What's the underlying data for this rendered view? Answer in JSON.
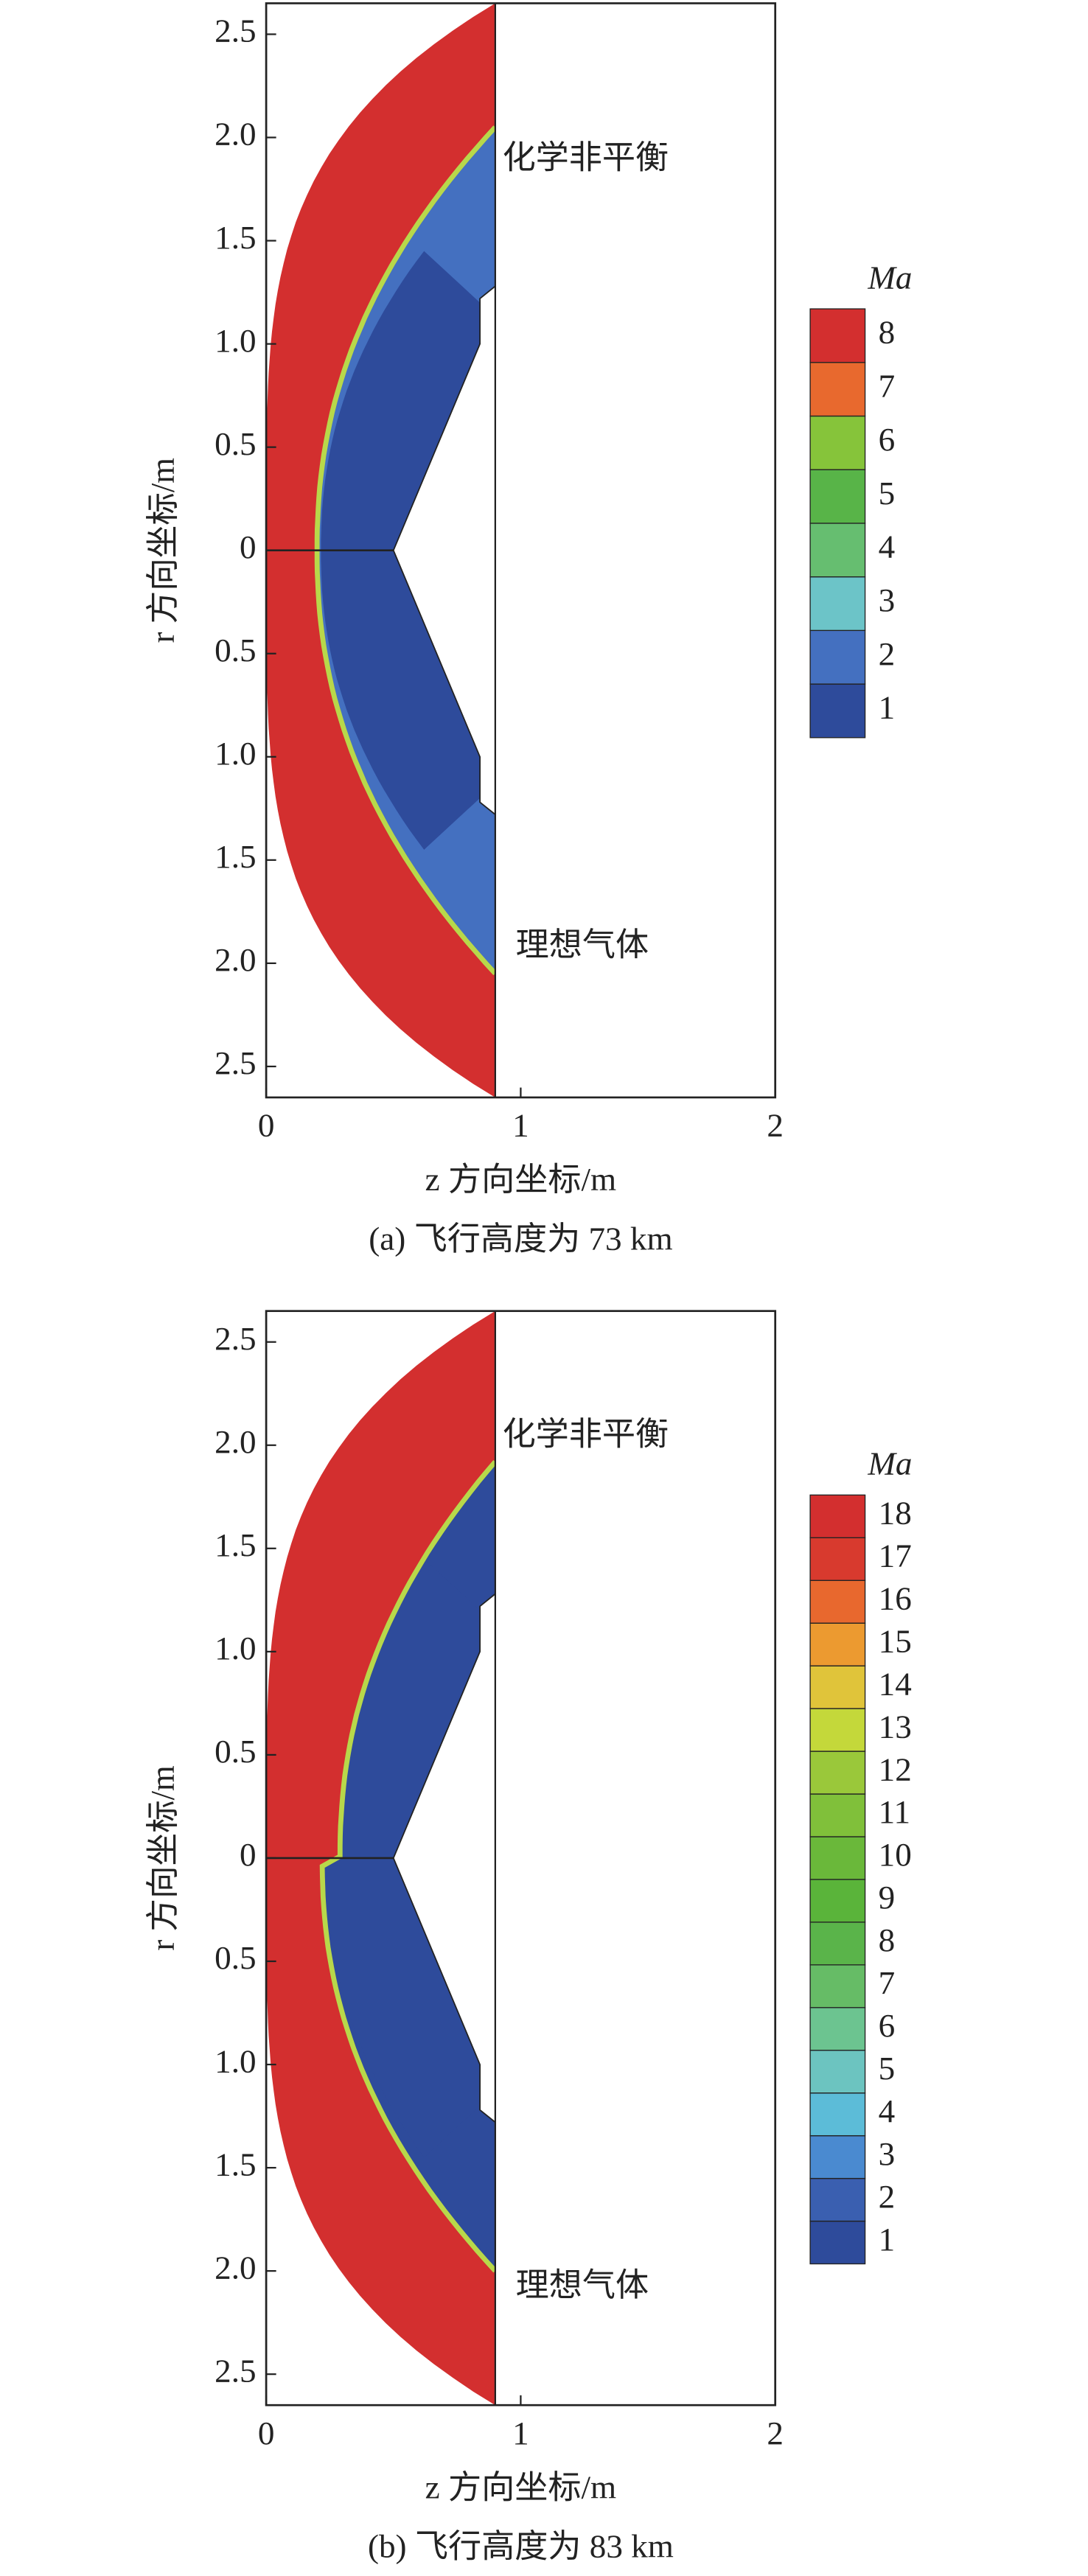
{
  "chart_data": [
    {
      "type": "contour",
      "title": "(a) 飞行高度为 73 km",
      "xlabel": "z 方向坐标/m",
      "ylabel": "r 方向坐标/m",
      "xlim": [
        0,
        2
      ],
      "xticks": [
        0,
        1,
        2
      ],
      "ylim": [
        -2.65,
        2.65
      ],
      "yticks": [
        {
          "value": -2.5,
          "label": "2.5"
        },
        {
          "value": -2,
          "label": "2.0"
        },
        {
          "value": -1.5,
          "label": "1.5"
        },
        {
          "value": -1,
          "label": "1.0"
        },
        {
          "value": -0.5,
          "label": "0.5"
        },
        0,
        {
          "value": 0.5,
          "label": "0.5"
        },
        {
          "value": 1,
          "label": "1.0"
        },
        {
          "value": 1.5,
          "label": "1.5"
        },
        {
          "value": 2,
          "label": "2.0"
        },
        {
          "value": 2.5,
          "label": "2.5"
        }
      ],
      "annotations": [
        "化学非平衡",
        "理想气体"
      ],
      "colorbar": {
        "title": "Ma",
        "levels": [
          1,
          2,
          3,
          4,
          5,
          6,
          7,
          8
        ],
        "colors": [
          "#2e4b9b",
          "#4470c0",
          "#6cc4c8",
          "#66be70",
          "#58b448",
          "#86c43a",
          "#e8692e",
          "#d32f2f"
        ]
      }
    },
    {
      "type": "contour",
      "title": "(b) 飞行高度为 83 km",
      "xlabel": "z 方向坐标/m",
      "ylabel": "r 方向坐标/m",
      "xlim": [
        0,
        2
      ],
      "xticks": [
        0,
        1,
        2
      ],
      "ylim": [
        -2.65,
        2.65
      ],
      "yticks": [
        {
          "value": -2.5,
          "label": "2.5"
        },
        {
          "value": -2,
          "label": "2.0"
        },
        {
          "value": -1.5,
          "label": "1.5"
        },
        {
          "value": -1,
          "label": "1.0"
        },
        {
          "value": -0.5,
          "label": "0.5"
        },
        0,
        {
          "value": 0.5,
          "label": "0.5"
        },
        {
          "value": 1,
          "label": "1.0"
        },
        {
          "value": 1.5,
          "label": "1.5"
        },
        {
          "value": 2,
          "label": "2.0"
        },
        {
          "value": 2.5,
          "label": "2.5"
        }
      ],
      "annotations": [
        "化学非平衡",
        "理想气体"
      ],
      "colorbar": {
        "title": "Ma",
        "levels": [
          1,
          2,
          3,
          4,
          5,
          6,
          7,
          8,
          9,
          10,
          11,
          12,
          13,
          14,
          15,
          16,
          17,
          18
        ],
        "colors": [
          "#2e4b9b",
          "#3a5fb0",
          "#4a8ad0",
          "#5cbcd8",
          "#6cc4c0",
          "#6cc490",
          "#66bc66",
          "#5ab44a",
          "#5ab43a",
          "#6ab83a",
          "#80c03a",
          "#9ac83a",
          "#c4d83a",
          "#e0c43a",
          "#ec9a30",
          "#e8682e",
          "#d83a2e",
          "#d32f2f"
        ]
      }
    }
  ]
}
